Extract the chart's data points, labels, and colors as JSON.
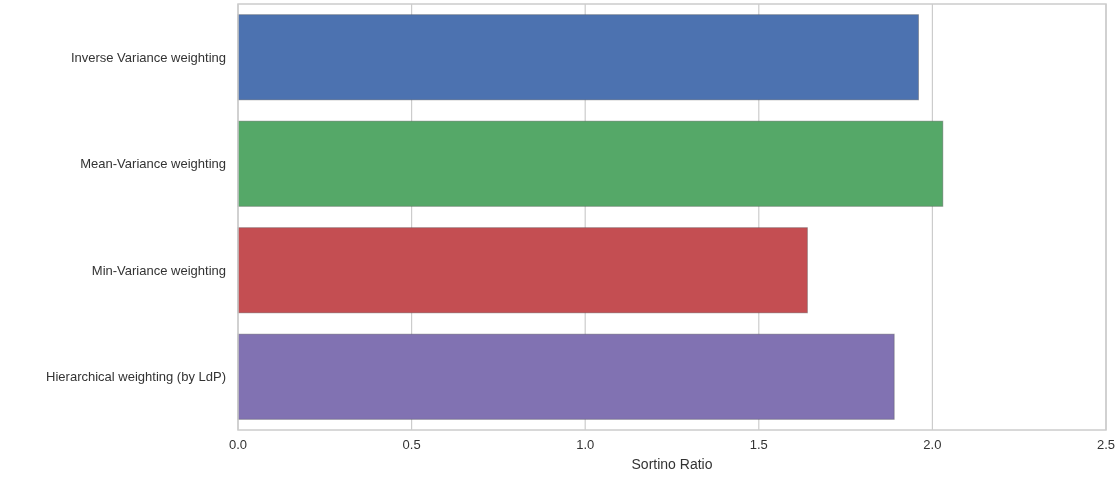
{
  "chart_data": {
    "type": "bar",
    "orientation": "horizontal",
    "xlabel": "Sortino Ratio",
    "categories": [
      "Inverse Variance weighting",
      "Mean-Variance weighting",
      "Min-Variance weighting",
      "Hierarchical weighting (by LdP)"
    ],
    "values": [
      1.96,
      2.03,
      1.64,
      1.89
    ],
    "colors": [
      "#4c72b0",
      "#55a868",
      "#c44e52",
      "#8172b2"
    ],
    "xlim": [
      0,
      2.5
    ],
    "xticks": [
      {
        "value": 0,
        "label": "0.0"
      },
      {
        "value": 0.5,
        "label": "0.5"
      },
      {
        "value": 1,
        "label": "1.0"
      },
      {
        "value": 1.5,
        "label": "1.5"
      },
      {
        "value": 2,
        "label": "2.0"
      },
      {
        "value": 2.5,
        "label": "2.5"
      }
    ],
    "grid": "x"
  }
}
